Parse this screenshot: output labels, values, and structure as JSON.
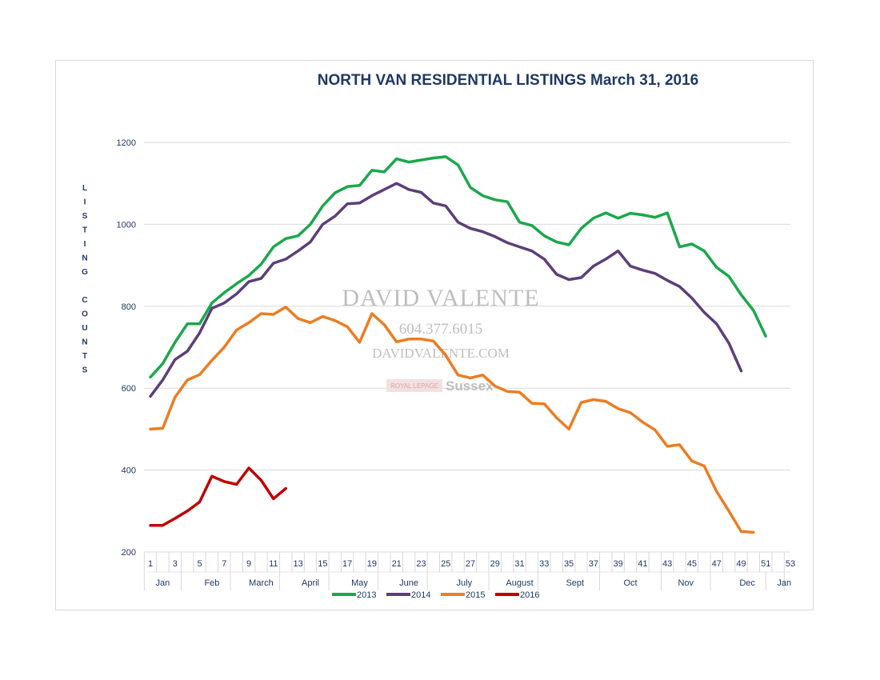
{
  "chart_data": {
    "type": "line",
    "title": "NORTH VAN RESIDENTIAL LISTINGS March 31, 2016",
    "ylabel": "LISTING COUNTS",
    "xlabel": "",
    "ylim": [
      200,
      1200
    ],
    "yticks": [
      200,
      400,
      600,
      800,
      1000,
      1200
    ],
    "xlim": [
      1,
      53
    ],
    "xticks": [
      1,
      3,
      5,
      7,
      9,
      11,
      13,
      15,
      17,
      19,
      21,
      23,
      25,
      27,
      29,
      31,
      33,
      35,
      37,
      39,
      41,
      43,
      45,
      47,
      49,
      51,
      53
    ],
    "months": [
      {
        "label": "Jan",
        "week": 2
      },
      {
        "label": "Feb",
        "week": 6
      },
      {
        "label": "March",
        "week": 10
      },
      {
        "label": "April",
        "week": 14
      },
      {
        "label": "May",
        "week": 18
      },
      {
        "label": "June",
        "week": 22
      },
      {
        "label": "July",
        "week": 26.5
      },
      {
        "label": "August",
        "week": 31
      },
      {
        "label": "Sept",
        "week": 35.5
      },
      {
        "label": "Oct",
        "week": 40
      },
      {
        "label": "Nov",
        "week": 44.5
      },
      {
        "label": "Dec",
        "week": 49.5
      },
      {
        "label": "Jan",
        "week": 52.5
      }
    ],
    "month_boundaries": [
      1,
      4,
      8,
      12,
      16,
      20,
      24,
      29,
      33,
      38,
      43,
      47,
      51.5,
      53
    ],
    "grid": true,
    "legend_position": "bottom",
    "series": [
      {
        "name": "2013",
        "color": "#1aa84b",
        "values": [
          627,
          660,
          712,
          757,
          757,
          808,
          833,
          855,
          875,
          903,
          945,
          965,
          972,
          1000,
          1045,
          1077,
          1092,
          1095,
          1132,
          1128,
          1160,
          1152,
          1157,
          1162,
          1165,
          1145,
          1090,
          1070,
          1060,
          1055,
          1005,
          997,
          972,
          957,
          950,
          990,
          1015,
          1028,
          1015,
          1027,
          1023,
          1017,
          1028,
          945,
          952,
          935,
          895,
          873,
          828,
          790,
          727
        ]
      },
      {
        "name": "2014",
        "color": "#5b3f7a",
        "values": [
          580,
          620,
          670,
          690,
          735,
          795,
          808,
          830,
          860,
          868,
          905,
          915,
          935,
          957,
          1000,
          1020,
          1050,
          1052,
          1070,
          1085,
          1100,
          1085,
          1078,
          1052,
          1045,
          1005,
          990,
          982,
          970,
          955,
          945,
          935,
          915,
          878,
          865,
          870,
          898,
          915,
          935,
          898,
          888,
          880,
          863,
          848,
          820,
          785,
          757,
          710,
          642
        ]
      },
      {
        "name": "2015",
        "color": "#ec7d22",
        "values": [
          500,
          502,
          578,
          620,
          633,
          668,
          700,
          742,
          760,
          782,
          780,
          798,
          770,
          760,
          775,
          765,
          750,
          712,
          782,
          755,
          713,
          720,
          720,
          715,
          680,
          632,
          625,
          632,
          605,
          592,
          590,
          563,
          562,
          528,
          500,
          565,
          572,
          568,
          550,
          540,
          517,
          498,
          458,
          462,
          422,
          410,
          348,
          300,
          250,
          248
        ]
      },
      {
        "name": "2016",
        "color": "#c00000",
        "values": [
          265,
          265,
          282,
          300,
          322,
          385,
          372,
          365,
          405,
          375,
          330,
          355
        ]
      }
    ]
  },
  "watermark": {
    "name": "DAVID VALENTE",
    "phone": "604.377.6015",
    "website": "DAVIDVALENTE.COM",
    "brand": "ROYAL LEPAGE",
    "office": "Sussex"
  }
}
